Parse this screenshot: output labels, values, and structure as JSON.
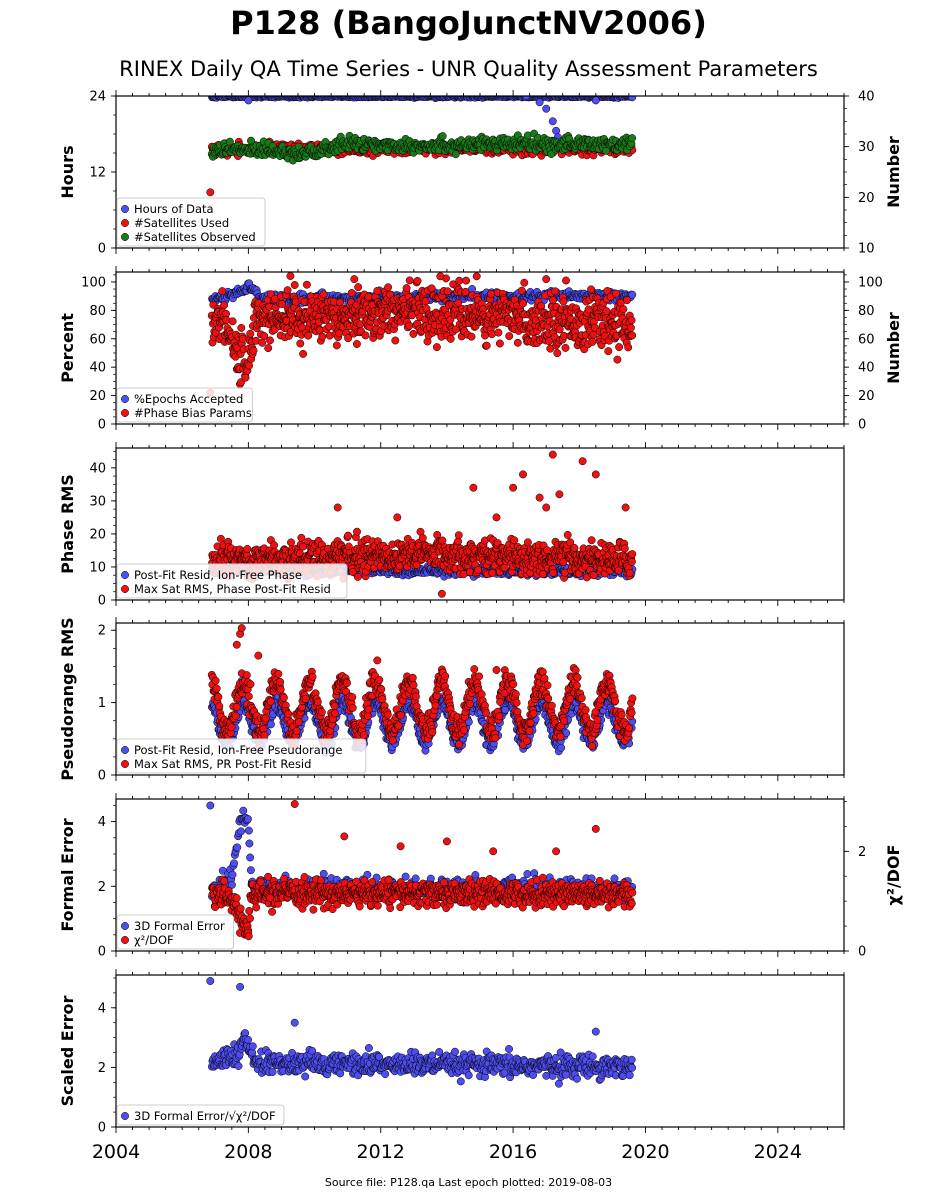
{
  "header": {
    "title": "P128 (BangoJunctNV2006)",
    "subtitle": "RINEX Daily QA Time Series - UNR Quality Assessment Parameters"
  },
  "footer": {
    "text": "Source file: P128.qa Last epoch plotted: 2019-08-03"
  },
  "colors": {
    "blue": "#4d4df0",
    "red": "#ee1111",
    "green": "#1a7a1a",
    "edge": "#000000"
  },
  "chart_data": [
    {
      "id": "hours",
      "type": "scatter",
      "ylabel": "Hours",
      "ylabel_right": "Number",
      "ylim": [
        0,
        24
      ],
      "yticks": [
        0,
        12,
        24
      ],
      "yticks_labels": [
        "0",
        "12",
        "24"
      ],
      "ylim_right": [
        10,
        40
      ],
      "yticks_right": [
        10,
        20,
        30,
        40
      ],
      "legend_position": "lower-left",
      "series": [
        {
          "name": "Hours of Data",
          "color": "blue",
          "axis": "left",
          "typical": 23.9,
          "spread": 0.08,
          "approx_points": 520,
          "outliers": [
            [
              2008.0,
              23.3
            ],
            [
              2016.4,
              24.0
            ],
            [
              2016.8,
              23.0
            ],
            [
              2017.0,
              22.0
            ],
            [
              2017.2,
              20.0
            ],
            [
              2017.3,
              18.5
            ],
            [
              2017.35,
              17.5
            ],
            [
              2018.5,
              23.3
            ]
          ]
        },
        {
          "name": "#Satellites Used",
          "color": "red",
          "axis": "right",
          "typical": 29.5,
          "spread": 0.5,
          "approx_points": 520,
          "outliers": [
            [
              2006.85,
              21.0
            ],
            [
              2009.4,
              30.0
            ]
          ]
        },
        {
          "name": "#Satellites Observed",
          "color": "green",
          "axis": "right",
          "segments": [
            [
              2006.9,
              29.2
            ],
            [
              2008.5,
              29.5
            ],
            [
              2009.5,
              28.8
            ],
            [
              2010.3,
              29.0
            ],
            [
              2010.8,
              30.5
            ],
            [
              2013.0,
              30.3
            ],
            [
              2016.0,
              30.5
            ],
            [
              2019.6,
              30.5
            ]
          ],
          "spread": 0.7,
          "approx_points": 520,
          "outliers": []
        }
      ]
    },
    {
      "id": "percent",
      "type": "scatter",
      "ylabel": "Percent",
      "ylabel_right": "Number",
      "ylim": [
        0,
        107
      ],
      "yticks": [
        0,
        20,
        40,
        60,
        80,
        100
      ],
      "ylim_right": [
        0,
        107
      ],
      "yticks_right": [
        0,
        20,
        40,
        60,
        80,
        100
      ],
      "legend_position": "lower-left",
      "series": [
        {
          "name": "%Epochs Accepted",
          "color": "blue",
          "axis": "left",
          "segments": [
            [
              2006.9,
              87
            ],
            [
              2007.8,
              93
            ],
            [
              2008.05,
              97
            ],
            [
              2008.4,
              88
            ],
            [
              2012.0,
              89
            ],
            [
              2016.0,
              90
            ],
            [
              2019.6,
              90
            ]
          ],
          "spread": 1.5,
          "approx_points": 500,
          "outliers": []
        },
        {
          "name": "#Phase Bias Params",
          "color": "red",
          "axis": "right",
          "segments": [
            [
              2006.9,
              76
            ],
            [
              2007.4,
              70
            ],
            [
              2007.7,
              45
            ],
            [
              2008.0,
              43
            ],
            [
              2008.2,
              75
            ],
            [
              2010.0,
              76
            ],
            [
              2013.0,
              80
            ],
            [
              2016.0,
              74
            ],
            [
              2019.6,
              70
            ]
          ],
          "spread": 9,
          "approx_points": 900,
          "outliers": [
            [
              2006.85,
              22
            ],
            [
              2011.2,
              102
            ],
            [
              2013.8,
              104
            ],
            [
              2014.9,
              104
            ],
            [
              2017.0,
              102
            ],
            [
              2017.6,
              101
            ]
          ]
        }
      ]
    },
    {
      "id": "phase-rms",
      "type": "scatter",
      "ylabel": "Phase RMS",
      "ylim": [
        0,
        46
      ],
      "yticks": [
        0,
        10,
        20,
        30,
        40
      ],
      "legend_position": "lower-left",
      "series": [
        {
          "name": "Post-Fit Resid, Ion-Free Phase",
          "color": "blue",
          "axis": "left",
          "segments": [
            [
              2006.9,
              9
            ],
            [
              2019.6,
              8.5
            ]
          ],
          "spread": 0.6,
          "approx_points": 600,
          "outliers": []
        },
        {
          "name": "Max Sat RMS, Phase Post-Fit Resid",
          "color": "red",
          "axis": "left",
          "segments": [
            [
              2006.9,
              12
            ],
            [
              2010.0,
              13
            ],
            [
              2013.5,
              14
            ],
            [
              2016.0,
              13
            ],
            [
              2019.6,
              12
            ]
          ],
          "spread": 2.5,
          "approx_points": 900,
          "outliers": [
            [
              2014.8,
              34
            ],
            [
              2016.0,
              34
            ],
            [
              2016.3,
              38
            ],
            [
              2016.8,
              31
            ],
            [
              2017.0,
              28
            ],
            [
              2017.2,
              44
            ],
            [
              2017.4,
              32
            ],
            [
              2018.1,
              42
            ],
            [
              2018.5,
              38
            ],
            [
              2019.4,
              28
            ],
            [
              2010.7,
              28
            ],
            [
              2012.5,
              25
            ],
            [
              2015.5,
              25
            ]
          ]
        }
      ]
    },
    {
      "id": "pseudorange-rms",
      "type": "scatter",
      "ylabel": "Pseudorange RMS",
      "ylim": [
        0,
        2.1
      ],
      "yticks": [
        0,
        1,
        2
      ],
      "legend_position": "lower-left",
      "series": [
        {
          "name": "Post-Fit Resid, Ion-Free Pseudorange",
          "color": "blue",
          "axis": "left",
          "seasonal": {
            "base": 0.72,
            "amp": 0.28,
            "peak_phase": 0.85
          },
          "spread": 0.06,
          "approx_points": 700,
          "outliers": [
            [
              2007.8,
              1.3
            ]
          ]
        },
        {
          "name": "Max Sat RMS, PR Post-Fit Resid",
          "color": "red",
          "axis": "left",
          "seasonal": {
            "base": 0.95,
            "amp": 0.35,
            "peak_phase": 0.85
          },
          "spread": 0.09,
          "approx_points": 800,
          "outliers": [
            [
              2007.65,
              1.8
            ],
            [
              2007.75,
              1.95
            ],
            [
              2007.8,
              2.03
            ],
            [
              2008.3,
              1.65
            ],
            [
              2015.5,
              1.45
            ]
          ]
        }
      ]
    },
    {
      "id": "formal-error",
      "type": "scatter",
      "ylabel": "Formal Error",
      "ylabel_right": "χ²/DOF",
      "ylim": [
        0,
        4.7
      ],
      "yticks": [
        0,
        2,
        4
      ],
      "ylim_right": [
        0,
        3.05
      ],
      "yticks_right": [
        0,
        2
      ],
      "yticks_right_labels": [
        "0",
        "2"
      ],
      "legend_position": "lower-left",
      "series": [
        {
          "name": "3D Formal Error",
          "color": "blue",
          "axis": "left",
          "segments": [
            [
              2006.9,
              1.9
            ],
            [
              2007.5,
              2.2
            ],
            [
              2007.75,
              4.0
            ],
            [
              2008.0,
              4.2
            ],
            [
              2008.1,
              2.0
            ],
            [
              2019.6,
              1.9
            ]
          ],
          "spread": 0.15,
          "approx_points": 550,
          "outliers": [
            [
              2006.85,
              4.5
            ]
          ]
        },
        {
          "name": "χ²/DOF",
          "color": "red",
          "axis": "right",
          "segments": [
            [
              2006.9,
              1.2
            ],
            [
              2007.6,
              1.0
            ],
            [
              2007.85,
              0.5
            ],
            [
              2008.0,
              0.4
            ],
            [
              2008.1,
              1.15
            ],
            [
              2019.6,
              1.15
            ]
          ],
          "spread": 0.12,
          "approx_points": 900,
          "outliers": [
            [
              2009.4,
              2.95
            ],
            [
              2010.9,
              2.3
            ],
            [
              2012.6,
              2.1
            ],
            [
              2014.0,
              2.2
            ],
            [
              2015.4,
              2.0
            ],
            [
              2017.3,
              2.0
            ],
            [
              2018.5,
              2.45
            ]
          ]
        }
      ]
    },
    {
      "id": "scaled-error",
      "type": "scatter",
      "ylabel": "Scaled Error",
      "ylim": [
        0,
        5.1
      ],
      "yticks": [
        0,
        2,
        4
      ],
      "legend_position": "lower-left",
      "series": [
        {
          "name": "3D Formal Error/√χ²/DOF",
          "color": "blue",
          "axis": "left",
          "segments": [
            [
              2006.9,
              2.15
            ],
            [
              2007.75,
              2.4
            ],
            [
              2007.85,
              3.0
            ],
            [
              2008.05,
              2.6
            ],
            [
              2008.2,
              2.15
            ],
            [
              2016.0,
              2.05
            ],
            [
              2019.6,
              2.05
            ]
          ],
          "spread": 0.18,
          "approx_points": 700,
          "outliers": [
            [
              2006.85,
              4.9
            ],
            [
              2007.75,
              4.7
            ],
            [
              2009.4,
              3.5
            ],
            [
              2018.5,
              3.2
            ]
          ]
        }
      ]
    }
  ],
  "x_axis": {
    "xlim": [
      2004,
      2026
    ],
    "ticks": [
      2004,
      2008,
      2012,
      2016,
      2020,
      2024
    ],
    "tick_labels": [
      "2004",
      "2008",
      "2012",
      "2016",
      "2020",
      "2024"
    ],
    "minor_step": 0.5
  }
}
